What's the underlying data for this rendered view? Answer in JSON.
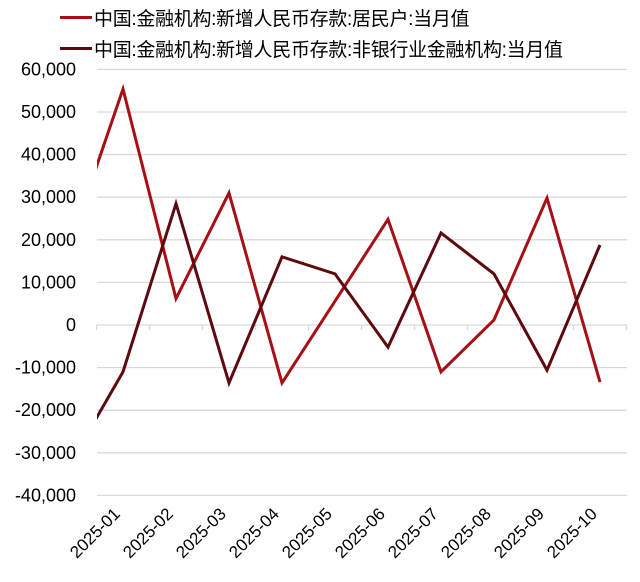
{
  "chart_data": {
    "type": "line",
    "title": "",
    "xlabel": "",
    "ylabel": "",
    "categories": [
      "2025-01",
      "2025-02",
      "2025-03",
      "2025-04",
      "2025-05",
      "2025-06",
      "2025-07",
      "2025-08",
      "2025-09",
      "2025-10"
    ],
    "series": [
      {
        "name": "中国:金融机构:新增人民币存款:居民户:当月值",
        "color": "#A50F15",
        "clipped_prior_value": 19000,
        "values": [
          55400,
          6200,
          31000,
          -13600,
          5600,
          24800,
          -11000,
          1200,
          29800,
          -13400
        ]
      },
      {
        "name": "中国:金融机构:新增人民币存款:非银行业金融机构:当月值",
        "color": "#5C0A0F",
        "clipped_prior_value": -32600,
        "values": [
          -11000,
          28500,
          -13600,
          16000,
          12000,
          -5200,
          21600,
          12000,
          -10600,
          18800
        ]
      }
    ],
    "yticks": [
      60000,
      50000,
      40000,
      30000,
      20000,
      10000,
      0,
      -10000,
      -20000,
      -30000,
      -40000
    ],
    "ytick_labels": [
      "60,000",
      "50,000",
      "40,000",
      "30,000",
      "20,000",
      "10,000",
      "0",
      "-10,000",
      "-20,000",
      "-30,000",
      "-40,000"
    ],
    "ylim": [
      -40000,
      60000
    ],
    "grid": true,
    "legend_position": "top"
  },
  "legend": {
    "items": [
      {
        "label": "中国:金融机构:新增人民币存款:居民户:当月值",
        "color": "#A50F15"
      },
      {
        "label": "中国:金融机构:新增人民币存款:非银行业金融机构:当月值",
        "color": "#5C0A0F"
      }
    ]
  }
}
